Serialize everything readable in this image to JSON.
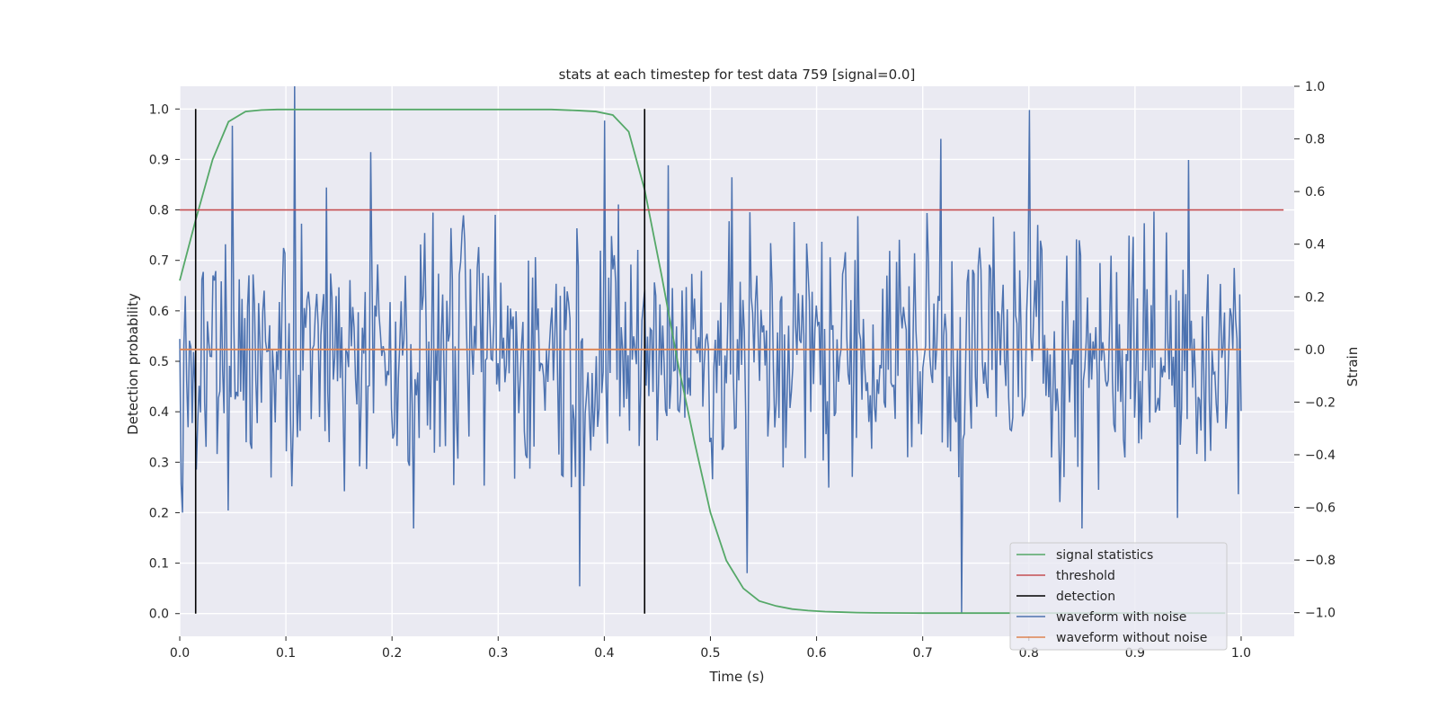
{
  "chart_data": {
    "type": "line",
    "title": "stats at each timestep for test data 759 [signal=0.0]",
    "xlabel": "Time (s)",
    "ylabel": "Detection probability",
    "y2label": "Strain",
    "xlim": [
      0.0,
      1.05
    ],
    "ylim": [
      -0.045,
      1.045
    ],
    "y2lim": [
      -1.09,
      1.0
    ],
    "x_ticks": [
      0.0,
      0.1,
      0.2,
      0.3,
      0.4,
      0.5,
      0.6,
      0.7,
      0.8,
      0.9,
      1.0
    ],
    "y_ticks": [
      0.0,
      0.1,
      0.2,
      0.3,
      0.4,
      0.5,
      0.6,
      0.7,
      0.8,
      0.9,
      1.0
    ],
    "y2_ticks": [
      -1.0,
      -0.8,
      -0.6,
      -0.4,
      -0.2,
      0.0,
      0.2,
      0.4,
      0.6,
      0.8,
      1.0
    ],
    "y2_tick_labels": [
      "−1.0",
      "−0.8",
      "−0.6",
      "−0.4",
      "−0.2",
      "0.0",
      "0.2",
      "0.4",
      "0.6",
      "0.8",
      "1.0"
    ],
    "grid": true,
    "legend_position": "lower-right",
    "colors": {
      "background": "#eaeaf2",
      "grid": "#ffffff",
      "signal_statistics": "#55a868",
      "threshold": "#c44e52",
      "detection": "#000000",
      "waveform_with_noise": "#4c72b0",
      "waveform_without_noise": "#dd8452"
    },
    "series": [
      {
        "name": "signal statistics",
        "axis": "left",
        "x": [
          0.0,
          0.015,
          0.031,
          0.046,
          0.062,
          0.077,
          0.092,
          0.108,
          0.123,
          0.138,
          0.154,
          0.2,
          0.25,
          0.3,
          0.35,
          0.375,
          0.392,
          0.408,
          0.423,
          0.438,
          0.454,
          0.469,
          0.485,
          0.5,
          0.515,
          0.531,
          0.546,
          0.562,
          0.577,
          0.592,
          0.608,
          0.623,
          0.638,
          0.654,
          0.7,
          0.75,
          0.8,
          0.85,
          0.9,
          0.95,
          0.985
        ],
        "y": [
          0.66,
          0.78,
          0.9,
          0.975,
          0.995,
          0.998,
          0.999,
          0.999,
          0.999,
          0.999,
          0.999,
          0.999,
          0.999,
          0.999,
          0.999,
          0.997,
          0.995,
          0.988,
          0.955,
          0.84,
          0.67,
          0.5,
          0.34,
          0.2,
          0.105,
          0.05,
          0.025,
          0.015,
          0.009,
          0.006,
          0.004,
          0.003,
          0.002,
          0.0015,
          0.001,
          0.001,
          0.001,
          0.001,
          0.001,
          0.001,
          0.001
        ]
      },
      {
        "name": "threshold",
        "axis": "left",
        "x": [
          0.0,
          1.04
        ],
        "y": [
          0.8,
          0.8
        ]
      },
      {
        "name": "detection",
        "axis": "left",
        "x": [
          0.015,
          0.438
        ],
        "y_range": [
          0.0,
          1.0
        ]
      },
      {
        "name": "waveform with noise",
        "axis": "right",
        "seed": 759,
        "x_range": [
          0.0,
          1.0
        ],
        "points": 768,
        "peaks": [
          {
            "x": 0.002,
            "y": -0.62
          },
          {
            "x": 0.05,
            "y": 0.85
          },
          {
            "x": 0.108,
            "y": 1.0
          },
          {
            "x": 0.105,
            "y": -0.52
          },
          {
            "x": 0.18,
            "y": 0.75
          },
          {
            "x": 0.22,
            "y": -0.68
          },
          {
            "x": 0.4,
            "y": 0.87
          },
          {
            "x": 0.377,
            "y": -0.9
          },
          {
            "x": 0.46,
            "y": 0.7
          },
          {
            "x": 0.535,
            "y": -0.85
          },
          {
            "x": 0.7175,
            "y": 0.8
          },
          {
            "x": 0.736,
            "y": -1.0
          },
          {
            "x": 0.8,
            "y": 0.91
          },
          {
            "x": 0.85,
            "y": -0.68
          },
          {
            "x": 0.95,
            "y": 0.72
          },
          {
            "x": 0.94,
            "y": -0.64
          },
          {
            "x": 0.998,
            "y": -0.55
          }
        ]
      },
      {
        "name": "waveform without noise",
        "axis": "right",
        "x": [
          0.0,
          1.0
        ],
        "y": [
          0.0,
          0.0
        ]
      }
    ]
  }
}
